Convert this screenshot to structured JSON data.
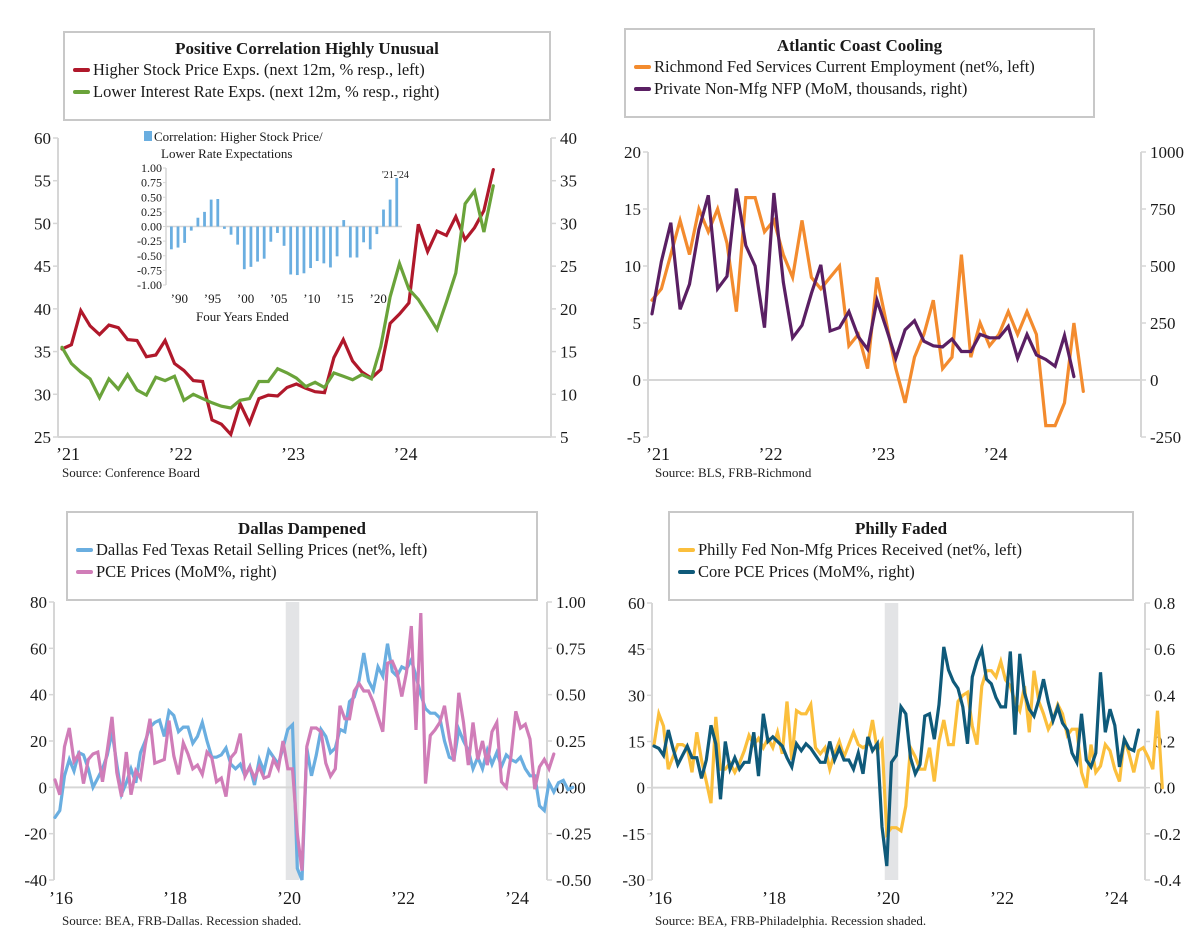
{
  "chart_data": [
    {
      "id": "top-left",
      "type": "line",
      "title": "Positive Correlation Highly Unusual",
      "source": "Source: Conference Board",
      "x_start": "2021-01",
      "x_ticks": [
        "’21",
        "’22",
        "’23",
        "’24"
      ],
      "left_axis": {
        "range": [
          25,
          60
        ],
        "ticks": [
          "25",
          "30",
          "35",
          "40",
          "45",
          "50",
          "55",
          "60"
        ]
      },
      "right_axis": {
        "range": [
          5,
          40
        ],
        "ticks": [
          "5",
          "10",
          "15",
          "20",
          "25",
          "30",
          "35",
          "40"
        ]
      },
      "grid": false,
      "legend_position": "top",
      "series": [
        {
          "name": "Higher Stock Price Exps. (next 12m, % resp., left)",
          "axis": "left",
          "color": "#b0182b",
          "values": [
            35.3,
            35.8,
            39.8,
            38.0,
            37.0,
            38.1,
            37.8,
            36.4,
            36.3,
            34.4,
            34.6,
            36.3,
            33.6,
            32.8,
            31.6,
            31.5,
            27.0,
            26.5,
            25.3,
            28.9,
            26.6,
            29.5,
            29.9,
            29.8,
            30.8,
            31.2,
            30.7,
            30.3,
            30.2,
            34.3,
            36.4,
            33.9,
            32.6,
            31.9,
            32.9,
            38.3,
            39.4,
            40.7,
            49.9,
            46.7,
            49.1,
            48.6,
            50.8,
            48.1,
            49.5,
            51.5,
            56.3
          ]
        },
        {
          "name": "Lower Interest Rate Exps. (next 12m, % resp., right)",
          "axis": "right",
          "color": "#6aa33a",
          "values": [
            15.5,
            13.6,
            12.6,
            11.8,
            9.6,
            11.8,
            10.6,
            12.3,
            10.5,
            9.9,
            12.0,
            11.6,
            12.1,
            9.3,
            10.0,
            9.5,
            9.0,
            8.6,
            8.4,
            9.3,
            9.5,
            11.5,
            11.5,
            13.0,
            12.5,
            11.9,
            10.9,
            11.4,
            10.8,
            12.5,
            12.1,
            11.7,
            12.3,
            11.8,
            15.6,
            21.4,
            25.3,
            22.3,
            21.1,
            19.4,
            17.6,
            20.8,
            24.2,
            32.3,
            33.8,
            29.0,
            34.4
          ]
        }
      ],
      "inset": {
        "type": "bar",
        "title_line1": "Correlation: Higher Stock Price/",
        "title_line2": "Lower Rate Expectations",
        "xlabel": "Four Years Ended",
        "annotation": "'21-'24",
        "color": "#6aaee0",
        "y_ticks": [
          "1.00",
          "0.75",
          "0.50",
          "0.25",
          "0.00",
          "-0.25",
          "-0.50",
          "-0.75",
          "-1.00"
        ],
        "ylim": [
          -1,
          1
        ],
        "x_ticks": [
          "’90",
          "’95",
          "’00",
          "’05",
          "’10",
          "’15",
          "’20"
        ],
        "first_year": 1989,
        "values": [
          -0.39,
          -0.36,
          -0.28,
          -0.07,
          0.15,
          0.25,
          0.46,
          0.47,
          -0.04,
          -0.14,
          -0.31,
          -0.73,
          -0.69,
          -0.6,
          -0.55,
          -0.26,
          -0.11,
          -0.33,
          -0.82,
          -0.83,
          -0.8,
          -0.71,
          -0.59,
          -0.63,
          -0.7,
          -0.51,
          0.11,
          -0.53,
          -0.53,
          -0.27,
          -0.39,
          -0.13,
          0.29,
          0.46,
          0.83
        ]
      }
    },
    {
      "id": "top-right",
      "type": "line",
      "title": "Atlantic Coast Cooling",
      "source": "Source: BLS, FRB-Richmond",
      "x_start": "2021-01",
      "x_ticks": [
        "’21",
        "’22",
        "’23",
        "’24"
      ],
      "left_axis": {
        "range": [
          -5,
          20
        ],
        "ticks": [
          "-5",
          "0",
          "5",
          "10",
          "15",
          "20"
        ]
      },
      "right_axis": {
        "range": [
          -250,
          1000
        ],
        "ticks": [
          "-250",
          "0",
          "250",
          "500",
          "750",
          "1000"
        ]
      },
      "grid": false,
      "legend_position": "top",
      "series": [
        {
          "name": "Richmond Fed Services Current Employment (net%, left)",
          "axis": "left",
          "color": "#f38b2e",
          "values": [
            7,
            8,
            11,
            14,
            11,
            15,
            13,
            15,
            12,
            6,
            16,
            16,
            13,
            14,
            11,
            9,
            14,
            9,
            8,
            9,
            10,
            3,
            4,
            1,
            9,
            5,
            1,
            -2,
            2,
            4,
            7,
            1,
            2,
            11,
            2,
            5,
            3,
            4,
            6,
            4,
            6,
            4,
            -4,
            -4,
            -2,
            5,
            -1
          ]
        },
        {
          "name": "Private Non-Mfg NFP (MoM, thousands, right)",
          "axis": "right",
          "color": "#5a1f63",
          "values": [
            290,
            520,
            690,
            310,
            420,
            660,
            810,
            400,
            455,
            840,
            590,
            500,
            230,
            820,
            430,
            185,
            240,
            380,
            505,
            215,
            230,
            300,
            190,
            135,
            350,
            225,
            95,
            220,
            260,
            170,
            150,
            145,
            180,
            125,
            125,
            200,
            185,
            185,
            235,
            95,
            200,
            110,
            90,
            60,
            195,
            15
          ]
        }
      ]
    },
    {
      "id": "bottom-left",
      "type": "line",
      "title": "Dallas Dampened",
      "source": "Source: BEA, FRB-Dallas. Recession shaded.",
      "x_start": "2016-01",
      "x_ticks": [
        "’16",
        "’18",
        "’20",
        "’22",
        "’24"
      ],
      "left_axis": {
        "range": [
          -40,
          80
        ],
        "ticks": [
          "-40",
          "-20",
          "0",
          "20",
          "40",
          "60",
          "80"
        ]
      },
      "right_axis": {
        "range": [
          -0.5,
          1.0
        ],
        "ticks": [
          "-0.50",
          "-0.25",
          "0.00",
          "0.25",
          "0.50",
          "0.75",
          "1.00"
        ]
      },
      "recession": [
        "2020-02",
        "2020-04"
      ],
      "grid": false,
      "legend_position": "top",
      "series": [
        {
          "name": "Dallas Fed Texas Retail Selling Prices (net%, left)",
          "axis": "left",
          "color": "#6aaee0",
          "values": [
            -13,
            -10,
            5,
            12,
            7,
            15,
            14,
            8,
            0,
            4,
            8,
            14,
            24,
            10,
            -3,
            2,
            8,
            2,
            15,
            20,
            26,
            28,
            29,
            22,
            33,
            31,
            24,
            26,
            26,
            19,
            22,
            28,
            20,
            13,
            13,
            14,
            17,
            10,
            8,
            10,
            5,
            9,
            1,
            12,
            7,
            16,
            13,
            10,
            17,
            25,
            27,
            -35,
            -40,
            17,
            5,
            14,
            25,
            22,
            15,
            17,
            25,
            24,
            37,
            39,
            46,
            58,
            46,
            42,
            52,
            48,
            62,
            50,
            48,
            52,
            51,
            55,
            48,
            40,
            34,
            32,
            32,
            30,
            20,
            13,
            12,
            25,
            20,
            16,
            8,
            13,
            8,
            16,
            10,
            15,
            9,
            14,
            12,
            11,
            13,
            8,
            5,
            5,
            -8,
            -10,
            2,
            -2,
            2,
            3,
            -1,
            0
          ]
        },
        {
          "name": "PCE Prices (MoM%, right)",
          "axis": "right",
          "color": "#d07db8",
          "values": [
            0.04,
            -0.04,
            0.22,
            0.32,
            0.14,
            0.18,
            0.02,
            0.15,
            0.18,
            0.19,
            0.03,
            0.2,
            0.38,
            0.08,
            -0.05,
            0.19,
            -0.04,
            0.09,
            0.05,
            0.23,
            0.37,
            0.13,
            0.14,
            0.15,
            0.36,
            0.17,
            0.07,
            0.24,
            0.18,
            0.1,
            0.12,
            0.07,
            0.19,
            0.16,
            0.03,
            0.05,
            -0.05,
            0.16,
            0.19,
            0.29,
            0.06,
            0.11,
            0.05,
            0.11,
            0.05,
            0.06,
            0.15,
            0.1,
            0.25,
            0.1,
            0.1,
            -0.25,
            -0.45,
            0.22,
            0.32,
            0.32,
            0.3,
            0.13,
            0.06,
            0.1,
            0.44,
            0.37,
            0.37,
            0.52,
            0.56,
            0.52,
            0.52,
            0.46,
            0.38,
            0.3,
            0.67,
            0.68,
            0.62,
            0.49,
            0.62,
            0.87,
            0.31,
            0.94,
            0.02,
            0.28,
            0.31,
            0.35,
            0.44,
            0.27,
            0.14,
            0.51,
            0.35,
            0.12,
            0.35,
            0.15,
            0.25,
            0.12,
            0.3,
            0.35,
            0.03,
            0.0,
            0.17,
            0.41,
            0.32,
            0.34,
            0.26,
            -0.01,
            0.11,
            0.15,
            0.1,
            0.18
          ]
        }
      ]
    },
    {
      "id": "bottom-right",
      "type": "line",
      "title": "Philly Faded",
      "source": "Source: BEA, FRB-Philadelphia. Recession shaded.",
      "x_start": "2016-01",
      "x_ticks": [
        "’16",
        "’18",
        "’20",
        "’22",
        "’24"
      ],
      "left_axis": {
        "range": [
          -30,
          60
        ],
        "ticks": [
          "-30",
          "-15",
          "0",
          "15",
          "30",
          "45",
          "60"
        ]
      },
      "right_axis": {
        "range": [
          -0.4,
          0.8
        ],
        "ticks": [
          "-0.4",
          "-0.2",
          "0.0",
          "0.2",
          "0.4",
          "0.6",
          "0.8"
        ]
      },
      "recession": [
        "2020-02",
        "2020-04"
      ],
      "grid": false,
      "legend_position": "top",
      "series": [
        {
          "name": "Philly Fed Non-Mfg Prices Received (net%, left)",
          "axis": "left",
          "color": "#fbbf3c",
          "values": [
            14,
            24,
            20,
            6,
            10,
            14,
            14,
            13,
            5,
            18,
            9,
            2,
            -5,
            23,
            6,
            6,
            8,
            5,
            8,
            12,
            17,
            14,
            16,
            13,
            16,
            13,
            18,
            11,
            28,
            9,
            25,
            24,
            24,
            27,
            13,
            11,
            13,
            6,
            11,
            15,
            10,
            14,
            18,
            14,
            13,
            14,
            22,
            12,
            15,
            -15,
            -13,
            -13,
            -14,
            -6,
            13,
            10,
            6,
            6,
            13,
            2,
            15,
            22,
            14,
            14,
            28,
            30,
            31,
            20,
            14,
            33,
            38,
            38,
            36,
            41,
            35,
            33,
            28,
            25,
            33,
            18,
            38,
            28,
            24,
            19,
            22,
            27,
            24,
            17,
            19,
            19,
            5,
            0,
            14,
            5,
            7,
            14,
            12,
            6,
            2,
            16,
            11,
            5,
            12,
            13,
            10,
            6,
            25,
            0
          ]
        },
        {
          "name": "Core PCE Prices (MoM%, right)",
          "axis": "right",
          "color": "#0f5a7a",
          "values": [
            0.18,
            0.17,
            0.14,
            0.25,
            0.17,
            0.1,
            0.14,
            0.18,
            0.13,
            0.13,
            0.04,
            0.12,
            0.27,
            0.19,
            -0.05,
            0.2,
            0.08,
            0.13,
            0.08,
            0.11,
            0.11,
            0.24,
            0.05,
            0.32,
            0.2,
            0.22,
            0.2,
            0.18,
            0.13,
            0.09,
            0.19,
            0.16,
            0.19,
            0.17,
            0.14,
            0.11,
            0.11,
            0.2,
            0.12,
            0.17,
            0.12,
            0.12,
            0.08,
            0.15,
            0.06,
            0.22,
            0.16,
            0.19,
            -0.17,
            -0.34,
            0.11,
            0.14,
            0.35,
            0.32,
            0.13,
            0.06,
            0.1,
            0.31,
            0.32,
            0.21,
            0.36,
            0.61,
            0.51,
            0.46,
            0.43,
            0.35,
            0.19,
            0.48,
            0.55,
            0.6,
            0.47,
            0.45,
            0.39,
            0.35,
            0.35,
            0.59,
            0.23,
            0.58,
            0.41,
            0.34,
            0.31,
            0.38,
            0.47,
            0.37,
            0.29,
            0.35,
            0.28,
            0.25,
            0.15,
            0.11,
            0.32,
            0.12,
            0.09,
            0.15,
            0.5,
            0.24,
            0.34,
            0.27,
            0.09,
            0.21,
            0.17,
            0.16,
            0.25
          ]
        }
      ]
    }
  ]
}
